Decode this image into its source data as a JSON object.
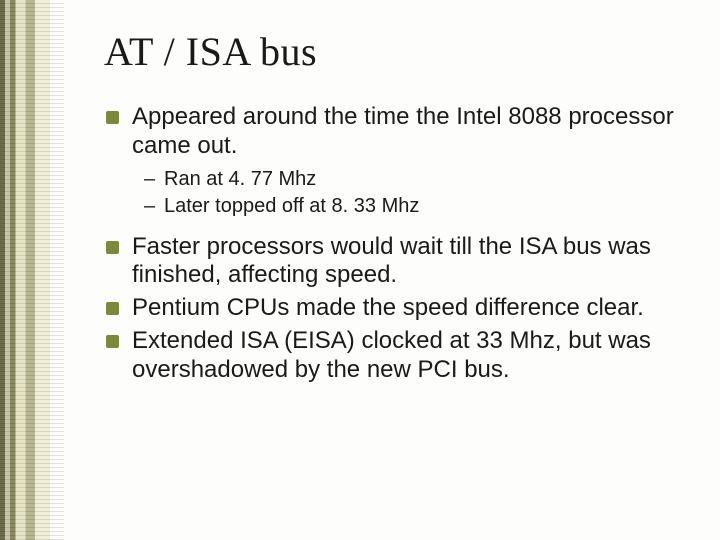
{
  "colors": {
    "bullet_fill": "#7a8a3a",
    "text": "#1a1a1a",
    "background": "#fdfdfb",
    "strip_tones": [
      "#6b6b4a",
      "#c8c6a8",
      "#8a8960",
      "#e8e6c8",
      "#b8b690",
      "#f0eed8"
    ]
  },
  "typography": {
    "title_family": "Times New Roman",
    "title_size_pt": 40,
    "body_family": "Arial",
    "body_size_pt": 24,
    "sub_size_pt": 20
  },
  "title": "AT / ISA bus",
  "bullets": {
    "b0": "Appeared around the time the Intel 8088 processor came out.",
    "b0_sub0": "Ran at 4. 77 Mhz",
    "b0_sub1": "Later topped off at 8. 33 Mhz",
    "b1": "Faster processors would wait till the ISA bus was finished, affecting speed.",
    "b2": "Pentium CPUs made the speed difference clear.",
    "b3": "Extended ISA (EISA) clocked at 33 Mhz, but was overshadowed by the new PCI bus."
  }
}
